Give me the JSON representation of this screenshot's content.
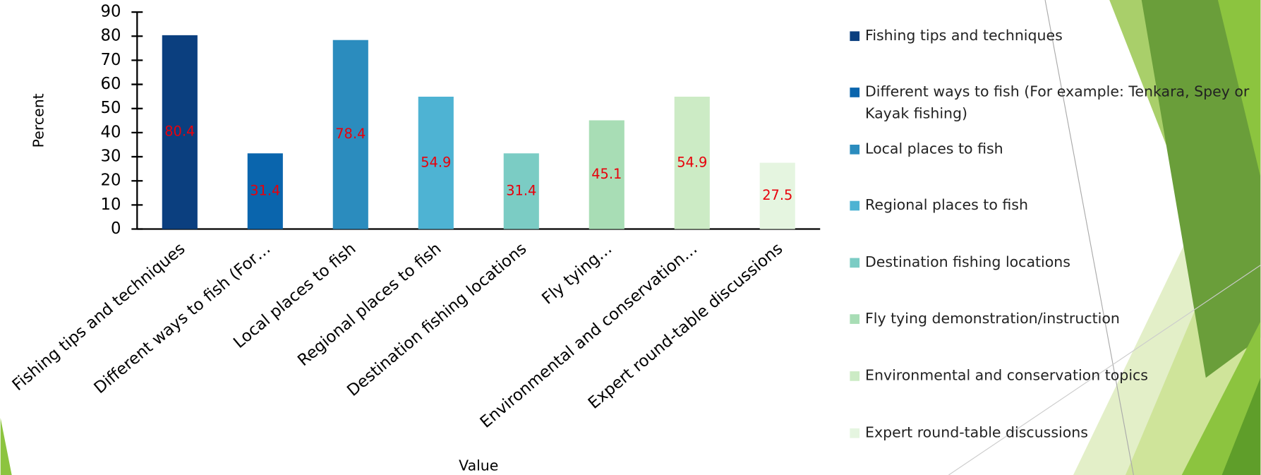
{
  "chart_data": {
    "type": "bar",
    "y_label": "Percent",
    "x_label": "Value",
    "categories": [
      "Fishing tips and techniques",
      "Different ways to fish (For…",
      "Local places to fish",
      "Regional places to fish",
      "Destination fishing locations",
      "Fly tying…",
      "Environmental and conservation…",
      "Expert round-table discussions"
    ],
    "values": [
      80.4,
      31.4,
      78.4,
      54.9,
      31.4,
      45.1,
      54.9,
      27.5
    ],
    "colors": [
      "#0b3f7f",
      "#0a65ad",
      "#2b8cbe",
      "#4eb3d3",
      "#7bccc4",
      "#a8ddb5",
      "#ccebc5",
      "#e5f5e0"
    ],
    "legend": [
      "Fishing tips and techniques",
      "Different ways to fish (For example: Tenkara, Spey or Kayak fishing)",
      "Local places to fish",
      "Regional places to fish",
      "Destination fishing locations",
      "Fly tying demonstration/instruction",
      "Environmental and conservation topics",
      "Expert round-table discussions"
    ],
    "value_label_color": "#e8000b",
    "ylim": [
      0,
      90
    ],
    "yticks": [
      0,
      10,
      20,
      30,
      40,
      50,
      60,
      70,
      80,
      90
    ],
    "grid": false
  }
}
